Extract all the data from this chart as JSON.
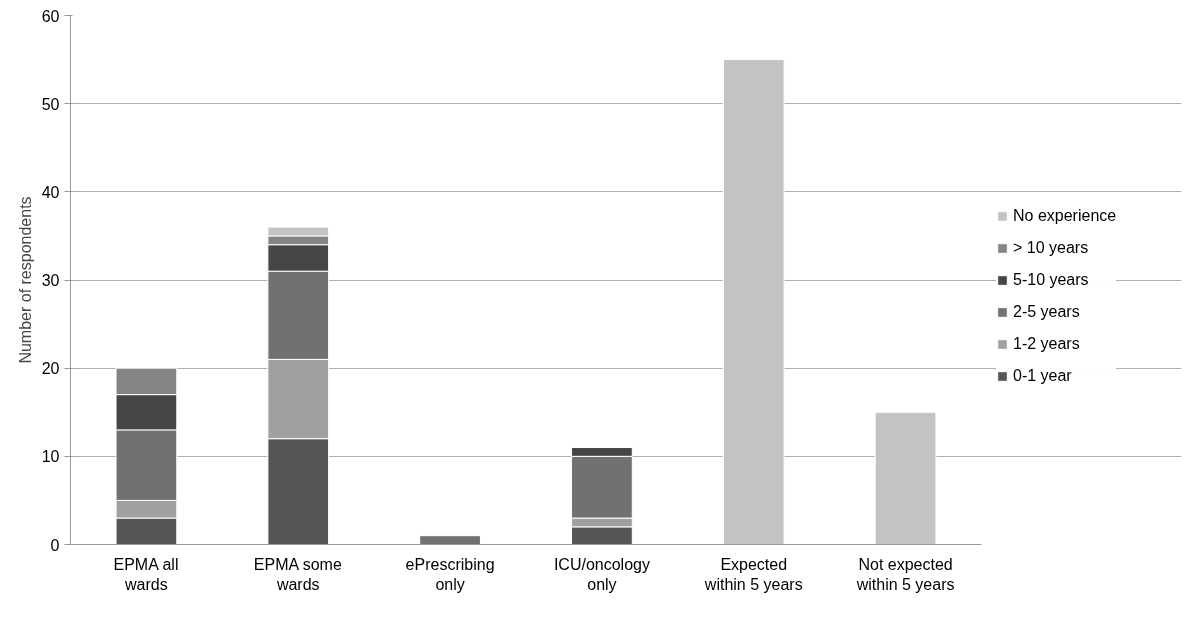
{
  "chart_data": {
    "type": "bar",
    "stacked": true,
    "ylabel": "Number of respondents",
    "categories": [
      "EPMA all wards",
      "EPMA some wards",
      "ePrescribing only",
      "ICU/oncology only",
      "Expected within 5 years",
      "Not expected within 5 years"
    ],
    "series": [
      {
        "name": "0-1 year",
        "color": "#555555",
        "values": [
          3,
          12,
          0,
          2,
          0,
          0
        ]
      },
      {
        "name": "1-2 years",
        "color": "#a0a0a0",
        "values": [
          2,
          9,
          0,
          1,
          0,
          0
        ]
      },
      {
        "name": "2-5 years",
        "color": "#717171",
        "values": [
          8,
          10,
          1,
          7,
          0,
          0
        ]
      },
      {
        "name": "5-10 years",
        "color": "#454545",
        "values": [
          4,
          3,
          0,
          1,
          0,
          0
        ]
      },
      {
        "name": "> 10 years",
        "color": "#848484",
        "values": [
          3,
          1,
          0,
          0,
          0,
          0
        ]
      },
      {
        "name": "No experience",
        "color": "#c3c3c3",
        "values": [
          0,
          1,
          0,
          0,
          55,
          15
        ]
      }
    ],
    "ylim": [
      0,
      60
    ],
    "yticks": [
      0,
      10,
      20,
      30,
      40,
      50,
      60
    ],
    "grid": "y",
    "legend": "right"
  }
}
